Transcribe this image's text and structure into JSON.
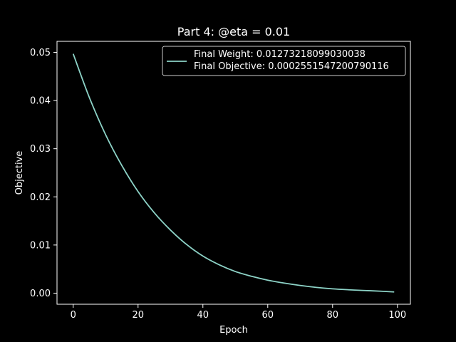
{
  "chart_data": {
    "type": "line",
    "title": "Part 4: @eta = 0.01",
    "xlabel": "Epoch",
    "ylabel": "Objective",
    "xlim": [
      -5,
      104
    ],
    "ylim": [
      -0.0023,
      0.0523
    ],
    "xticks": [
      0,
      20,
      40,
      60,
      80,
      100
    ],
    "xtick_labels": [
      "0",
      "20",
      "40",
      "60",
      "80",
      "100"
    ],
    "yticks": [
      0.0,
      0.01,
      0.02,
      0.03,
      0.04,
      0.05
    ],
    "ytick_labels": [
      "0.00",
      "0.01",
      "0.02",
      "0.03",
      "0.04",
      "0.05"
    ],
    "grid": false,
    "legend_position": "top-right",
    "legend_lines": [
      "Final Weight: 0.01273218099030038",
      "Final Objective: 0.0002551547200790116"
    ],
    "series": [
      {
        "color": "#8dd3c7",
        "x": [
          0,
          5,
          10,
          15,
          20,
          25,
          30,
          35,
          40,
          45,
          50,
          55,
          60,
          65,
          70,
          75,
          80,
          85,
          90,
          95,
          99
        ],
        "y": [
          0.0497,
          0.0406,
          0.0329,
          0.0265,
          0.0211,
          0.0167,
          0.0131,
          0.0101,
          0.0077,
          0.0059,
          0.0045,
          0.0035,
          0.0027,
          0.0021,
          0.0016,
          0.0012,
          0.0009,
          0.0007,
          0.00055,
          0.0004,
          0.000255
        ]
      }
    ]
  }
}
